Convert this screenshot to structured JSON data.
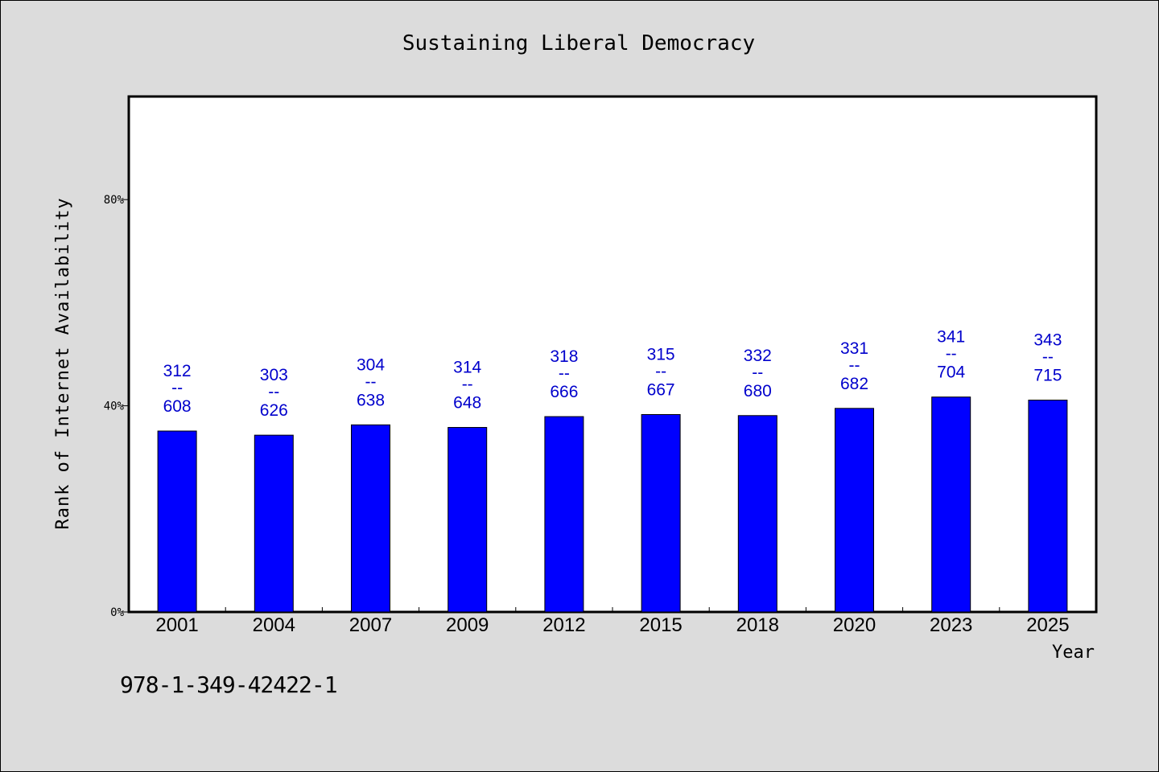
{
  "chart_data": {
    "type": "bar",
    "title": "Sustaining Liberal Democracy",
    "xlabel": "Year",
    "ylabel": "Rank of Internet Availability",
    "categories": [
      "2001",
      "2004",
      "2007",
      "2009",
      "2012",
      "2015",
      "2018",
      "2020",
      "2023",
      "2025"
    ],
    "values": [
      0.351,
      0.343,
      0.363,
      0.358,
      0.379,
      0.383,
      0.381,
      0.395,
      0.417,
      0.411
    ],
    "label_numerators": [
      "312",
      "303",
      "304",
      "314",
      "318",
      "315",
      "332",
      "331",
      "341",
      "343"
    ],
    "label_denominators": [
      "608",
      "626",
      "638",
      "648",
      "666",
      "667",
      "680",
      "682",
      "704",
      "715"
    ],
    "label_separator": "--",
    "yticks": [
      0,
      0.4,
      0.8
    ],
    "ytick_labels": [
      "0%",
      "40%",
      "80%"
    ],
    "ylim": [
      0,
      1
    ],
    "grid": false,
    "bar_color": "#0000ff",
    "label_color": "#0000cc",
    "background_color": "#dcdcdc",
    "plot_background": "#ffffff"
  },
  "footer": {
    "code": "978-1-349-42422-1"
  }
}
